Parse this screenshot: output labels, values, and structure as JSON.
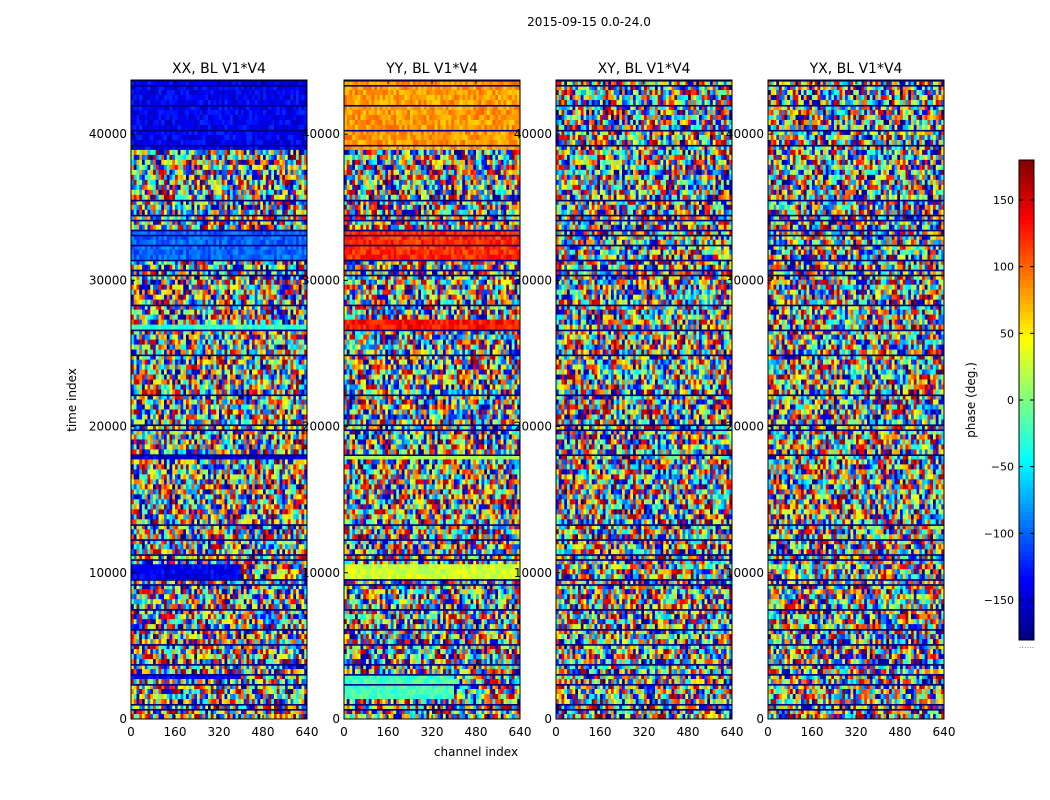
{
  "figure": {
    "suptitle": "2015-09-15 0.0-24.0"
  },
  "chart_data": {
    "type": "heatmap",
    "suptitle": "2015-09-15 0.0-24.0",
    "xlabel": "channel index",
    "ylabel": "time index",
    "xlim": [
      0,
      640
    ],
    "ylim": [
      0,
      43700
    ],
    "xticks": [
      0,
      160,
      320,
      480,
      640
    ],
    "yticks": [
      0,
      10000,
      20000,
      30000,
      40000
    ],
    "panels": [
      {
        "title": "XX, BL V1*V4",
        "regions": [
          {
            "t0": 38800,
            "t1": 43700,
            "phase": -140,
            "ch1": 640
          },
          {
            "t0": 31500,
            "t1": 33600,
            "phase": -100,
            "ch1": 640
          },
          {
            "t0": 26500,
            "t1": 27000,
            "phase": -25,
            "ch1": 640
          },
          {
            "t0": 17600,
            "t1": 18200,
            "phase": -150,
            "ch1": 640
          },
          {
            "t0": 9500,
            "t1": 10600,
            "phase": -140,
            "ch1": 400
          },
          {
            "t0": 2600,
            "t1": 3200,
            "phase": -140,
            "ch1": 400
          }
        ]
      },
      {
        "title": "YY, BL V1*V4",
        "regions": [
          {
            "t0": 38800,
            "t1": 43700,
            "phase": 80,
            "ch1": 640
          },
          {
            "t0": 31500,
            "t1": 33600,
            "phase": 120,
            "ch1": 640
          },
          {
            "t0": 26500,
            "t1": 27200,
            "phase": 130,
            "ch1": 640
          },
          {
            "t0": 17600,
            "t1": 18200,
            "phase": 20,
            "ch1": 640
          },
          {
            "t0": 9500,
            "t1": 10600,
            "phase": 30,
            "ch1": 640
          },
          {
            "t0": 1500,
            "t1": 3200,
            "phase": -20,
            "ch1": 400
          }
        ]
      },
      {
        "title": "XY, BL V1*V4",
        "regions": []
      },
      {
        "title": "YX, BL V1*V4",
        "regions": []
      }
    ],
    "colorbar": {
      "label": "phase (deg.)",
      "range": [
        -180,
        180
      ],
      "ticks": [
        150,
        100,
        50,
        0,
        -50,
        -100,
        -150
      ],
      "tick_labels": [
        "150",
        "100",
        "50",
        "0",
        "−50",
        "−100",
        "−150"
      ],
      "footer": "......",
      "colormap": "jet"
    }
  }
}
